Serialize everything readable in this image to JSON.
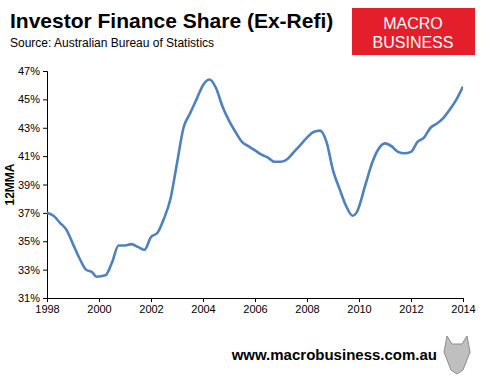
{
  "chart_data": {
    "type": "line",
    "title": "Investor Finance Share (Ex-Refi)",
    "subtitle": "Source: Australian Bureau of Statistics",
    "y_label": "12MMA",
    "logo_text": [
      "MACRO",
      "BUSINESS"
    ],
    "footer": "www.macrobusiness.com.au",
    "color": "#4f81bd",
    "grid": false,
    "x": [
      1998.0,
      1998.25,
      1998.5,
      1998.75,
      1999.0,
      1999.25,
      1999.5,
      1999.75,
      1999.9,
      2000.25,
      2000.5,
      2000.75,
      2001.0,
      2001.25,
      2001.5,
      2001.75,
      2002.0,
      2002.25,
      2002.5,
      2002.75,
      2003.0,
      2003.25,
      2003.5,
      2003.75,
      2004.0,
      2004.25,
      2004.5,
      2004.75,
      2005.0,
      2005.25,
      2005.5,
      2005.75,
      2006.0,
      2006.25,
      2006.5,
      2006.75,
      2007.0,
      2007.25,
      2007.5,
      2007.75,
      2008.0,
      2008.25,
      2008.5,
      2008.75,
      2009.0,
      2009.25,
      2009.5,
      2009.75,
      2009.9,
      2010.25,
      2010.5,
      2010.75,
      2011.0,
      2011.25,
      2011.5,
      2011.75,
      2012.0,
      2012.25,
      2012.5,
      2012.75,
      2013.0,
      2013.25,
      2013.5,
      2013.75,
      2014.0
    ],
    "values": [
      37.0,
      36.8,
      36.3,
      35.8,
      34.8,
      33.8,
      33.0,
      32.8,
      32.5,
      32.6,
      33.5,
      34.7,
      34.7,
      34.8,
      34.6,
      34.4,
      35.3,
      35.6,
      36.6,
      38.0,
      40.5,
      43.0,
      44.0,
      45.0,
      46.0,
      46.4,
      45.8,
      44.5,
      43.5,
      42.7,
      42.0,
      41.7,
      41.4,
      41.1,
      40.9,
      40.6,
      40.6,
      40.8,
      41.3,
      41.8,
      42.3,
      42.7,
      42.8,
      42.0,
      40.0,
      38.7,
      37.5,
      36.8,
      37.0,
      39.0,
      40.5,
      41.5,
      41.9,
      41.7,
      41.3,
      41.2,
      41.3,
      42.0,
      42.3,
      43.0,
      43.3,
      43.7,
      44.3,
      45.0,
      45.9
    ],
    "xlim": [
      1998,
      2014
    ],
    "xticks": [
      1998,
      2000,
      2002,
      2004,
      2006,
      2008,
      2010,
      2012,
      2014
    ],
    "ylim": [
      31,
      47
    ],
    "yticks": [
      {
        "value": 31,
        "label": "31%"
      },
      {
        "value": 33,
        "label": "33%"
      },
      {
        "value": 35,
        "label": "35%"
      },
      {
        "value": 37,
        "label": "37%"
      },
      {
        "value": 39,
        "label": "39%"
      },
      {
        "value": 41,
        "label": "41%"
      },
      {
        "value": 43,
        "label": "43%"
      },
      {
        "value": 45,
        "label": "45%"
      },
      {
        "value": 47,
        "label": "47%"
      }
    ]
  }
}
